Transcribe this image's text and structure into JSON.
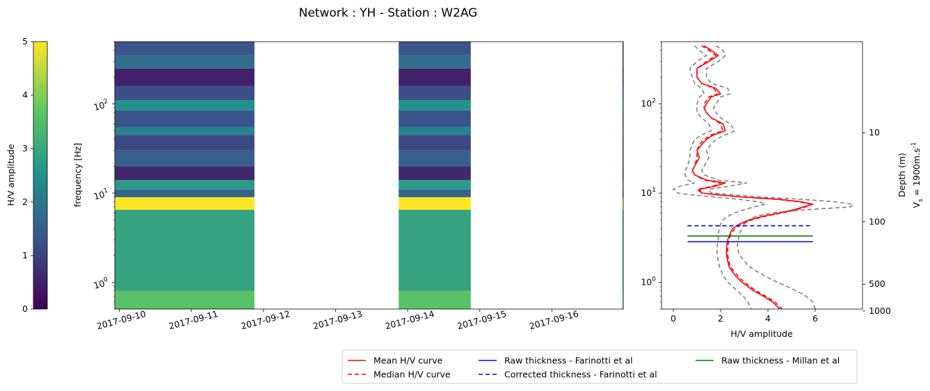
{
  "figure_title": "Network : YH - Station : W2AG",
  "colors": {
    "mean": "#ff0000",
    "median": "#ff0000",
    "bounds": "#808080",
    "farinotti_raw": "#0000ff",
    "farinotti_corrected": "#0000ff",
    "millan_raw": "#008000",
    "colormap": [
      "#440154",
      "#3b528b",
      "#21918c",
      "#5ec962",
      "#fde725"
    ]
  },
  "chart_data": [
    {
      "type": "heatmap",
      "name": "colorbar",
      "ylabel": "H/V amplitude",
      "range": [
        0,
        5
      ],
      "ticks": [
        0,
        1,
        2,
        3,
        4,
        5
      ],
      "tick_labels": [
        "0",
        "1",
        "2",
        "3",
        "4",
        "5"
      ]
    },
    {
      "type": "heatmap",
      "name": "spectrogram",
      "ylabel": "frequency [Hz]",
      "yscale": "log",
      "ylim": [
        0.5,
        500
      ],
      "y_tick_labels": [
        "10^0",
        "10^1",
        "10^2"
      ],
      "x_tick_labels": [
        "2017-09-10",
        "2017-09-11",
        "2017-09-12",
        "2017-09-13",
        "2017-09-14",
        "2017-09-15",
        "2017-09-16"
      ],
      "xlim": [
        "2017-09-09 22:30",
        "2017-09-16 23:45"
      ],
      "data_spans": [
        {
          "start": "2017-09-09 22:30",
          "end": "2017-09-11 21:00"
        },
        {
          "start": "2017-09-13 21:00",
          "end": "2017-09-14 21:00"
        },
        {
          "start": "2017-09-16 23:30",
          "end": "2017-09-16 23:45"
        }
      ],
      "bands_hz": [
        {
          "low": 0.5,
          "high": 0.8,
          "amplitude": 3.6
        },
        {
          "low": 0.8,
          "high": 6.5,
          "amplitude": 2.9
        },
        {
          "low": 6.5,
          "high": 9.0,
          "amplitude": 5.0
        },
        {
          "low": 9.0,
          "high": 11.0,
          "amplitude": 1.6
        },
        {
          "low": 11.0,
          "high": 14.0,
          "amplitude": 2.7
        },
        {
          "low": 14.0,
          "high": 20.0,
          "amplitude": 0.6
        },
        {
          "low": 20.0,
          "high": 30.0,
          "amplitude": 1.5
        },
        {
          "low": 30.0,
          "high": 45.0,
          "amplitude": 1.1
        },
        {
          "low": 45.0,
          "high": 55.0,
          "amplitude": 2.2
        },
        {
          "low": 55.0,
          "high": 85.0,
          "amplitude": 1.3
        },
        {
          "low": 85.0,
          "high": 110.0,
          "amplitude": 2.5
        },
        {
          "low": 110.0,
          "high": 160.0,
          "amplitude": 1.2
        },
        {
          "low": 160.0,
          "high": 250.0,
          "amplitude": 0.5
        },
        {
          "low": 250.0,
          "high": 350.0,
          "amplitude": 1.8
        },
        {
          "low": 350.0,
          "high": 500.0,
          "amplitude": 1.3
        }
      ]
    },
    {
      "type": "line",
      "name": "hv-profile",
      "xlabel": "H/V amplitude",
      "xlim": [
        -0.5,
        8.0
      ],
      "x_ticks": [
        0,
        2,
        4,
        6
      ],
      "x_tick_labels": [
        "0",
        "2",
        "4",
        "6"
      ],
      "yscale": "log",
      "ylim": [
        0.5,
        500
      ],
      "y_tick_labels": [
        "10^0",
        "10^1",
        "10^2"
      ],
      "right_axis": {
        "label_lines": [
          "Depth (m)",
          "V_s = 1900m.s^-1"
        ],
        "tick_labels": [
          "10",
          "100",
          "500",
          "1000"
        ],
        "tick_freq_hz": [
          47.5,
          4.75,
          0.95,
          0.475
        ]
      },
      "freq": [
        450,
        400,
        350,
        300,
        250,
        200,
        170,
        150,
        130,
        120,
        100,
        90,
        80,
        70,
        60,
        50,
        45,
        40,
        35,
        30,
        25,
        20,
        18,
        16,
        14,
        13,
        12,
        11,
        10,
        9.5,
        9,
        8.5,
        8,
        7.5,
        7,
        6.5,
        6,
        5.5,
        5,
        4.5,
        4,
        3.5,
        3,
        2.5,
        2,
        1.5,
        1.2,
        1,
        0.8,
        0.7,
        0.6,
        0.5
      ],
      "series": [
        {
          "name": "Mean H/V curve",
          "style": "solid",
          "values": [
            1.3,
            1.6,
            1.9,
            1.5,
            1.0,
            1.0,
            1.2,
            1.8,
            2.0,
            1.6,
            1.4,
            1.3,
            1.4,
            1.6,
            2.1,
            2.2,
            1.7,
            1.4,
            1.2,
            1.0,
            1.1,
            0.9,
            0.8,
            0.9,
            1.4,
            2.2,
            1.8,
            1.1,
            1.2,
            2.0,
            3.0,
            4.5,
            5.4,
            5.9,
            5.5,
            5.1,
            4.5,
            3.8,
            3.2,
            2.8,
            2.5,
            2.4,
            2.3,
            2.25,
            2.25,
            2.35,
            2.6,
            2.9,
            3.4,
            3.8,
            4.2,
            4.5
          ]
        },
        {
          "name": "Median H/V curve",
          "style": "dashed",
          "values": [
            1.2,
            1.5,
            1.8,
            1.4,
            1.0,
            1.0,
            1.2,
            1.7,
            1.9,
            1.5,
            1.3,
            1.3,
            1.4,
            1.6,
            2.0,
            2.1,
            1.6,
            1.3,
            1.1,
            1.0,
            1.0,
            0.9,
            0.8,
            0.9,
            1.3,
            2.0,
            1.7,
            1.0,
            1.2,
            2.0,
            3.0,
            4.4,
            5.3,
            5.8,
            5.6,
            5.2,
            4.6,
            3.9,
            3.3,
            2.9,
            2.6,
            2.45,
            2.35,
            2.3,
            2.3,
            2.4,
            2.7,
            3.0,
            3.5,
            3.9,
            4.3,
            4.6
          ]
        },
        {
          "name": "Upper bound",
          "style": "dashed",
          "values": [
            1.8,
            2.1,
            2.2,
            1.9,
            1.4,
            1.4,
            1.6,
            2.3,
            2.4,
            2.0,
            1.8,
            1.7,
            1.8,
            2.0,
            2.4,
            2.6,
            2.2,
            1.8,
            1.6,
            1.4,
            1.5,
            1.3,
            1.2,
            1.3,
            1.9,
            3.1,
            2.4,
            1.5,
            1.6,
            2.7,
            3.8,
            5.5,
            6.8,
            7.6,
            7.5,
            5.6,
            4.2,
            3.5,
            3.2,
            3.0,
            2.9,
            2.8,
            2.75,
            2.7,
            2.8,
            3.2,
            3.8,
            4.4,
            5.2,
            5.6,
            5.9,
            6.0
          ]
        },
        {
          "name": "Lower bound",
          "style": "dashed",
          "values": [
            0.9,
            1.1,
            1.4,
            1.0,
            0.7,
            0.8,
            0.9,
            1.2,
            1.3,
            1.1,
            1.0,
            1.0,
            1.0,
            1.2,
            1.5,
            1.6,
            1.2,
            0.9,
            0.8,
            0.7,
            0.7,
            0.6,
            0.5,
            0.5,
            0.6,
            0.9,
            0.3,
            0.0,
            0.2,
            0.9,
            1.8,
            2.8,
            3.6,
            3.9,
            3.4,
            3.0,
            2.6,
            2.3,
            2.1,
            2.0,
            1.95,
            1.9,
            1.9,
            1.85,
            1.85,
            1.95,
            2.1,
            2.3,
            2.7,
            2.95,
            3.15,
            3.3
          ]
        }
      ],
      "thickness_lines": [
        {
          "name": "Raw thickness - Farinotti et al",
          "style": "solid",
          "freq_hz": 2.85,
          "x_range": [
            0.6,
            5.9
          ]
        },
        {
          "name": "Corrected thickness - Farinotti et al",
          "style": "dashed",
          "freq_hz": 4.3,
          "x_range": [
            0.6,
            5.9
          ]
        },
        {
          "name": "Raw thickness - Millan et al",
          "style": "solid",
          "freq_hz": 3.3,
          "x_range": [
            0.6,
            5.9
          ]
        }
      ]
    }
  ],
  "legend": {
    "placement": "bottom-right",
    "entries": [
      {
        "label": "Mean H/V curve",
        "color": "#ff0000",
        "style": "solid"
      },
      {
        "label": "Median H/V curve",
        "color": "#ff0000",
        "style": "dashed"
      },
      {
        "label": "Raw thickness - Farinotti et al",
        "color": "#0000ff",
        "style": "solid"
      },
      {
        "label": "Corrected thickness - Farinotti et al",
        "color": "#0000ff",
        "style": "dashed"
      },
      {
        "label": "Raw thickness - Millan et al",
        "color": "#008000",
        "style": "solid"
      }
    ]
  }
}
